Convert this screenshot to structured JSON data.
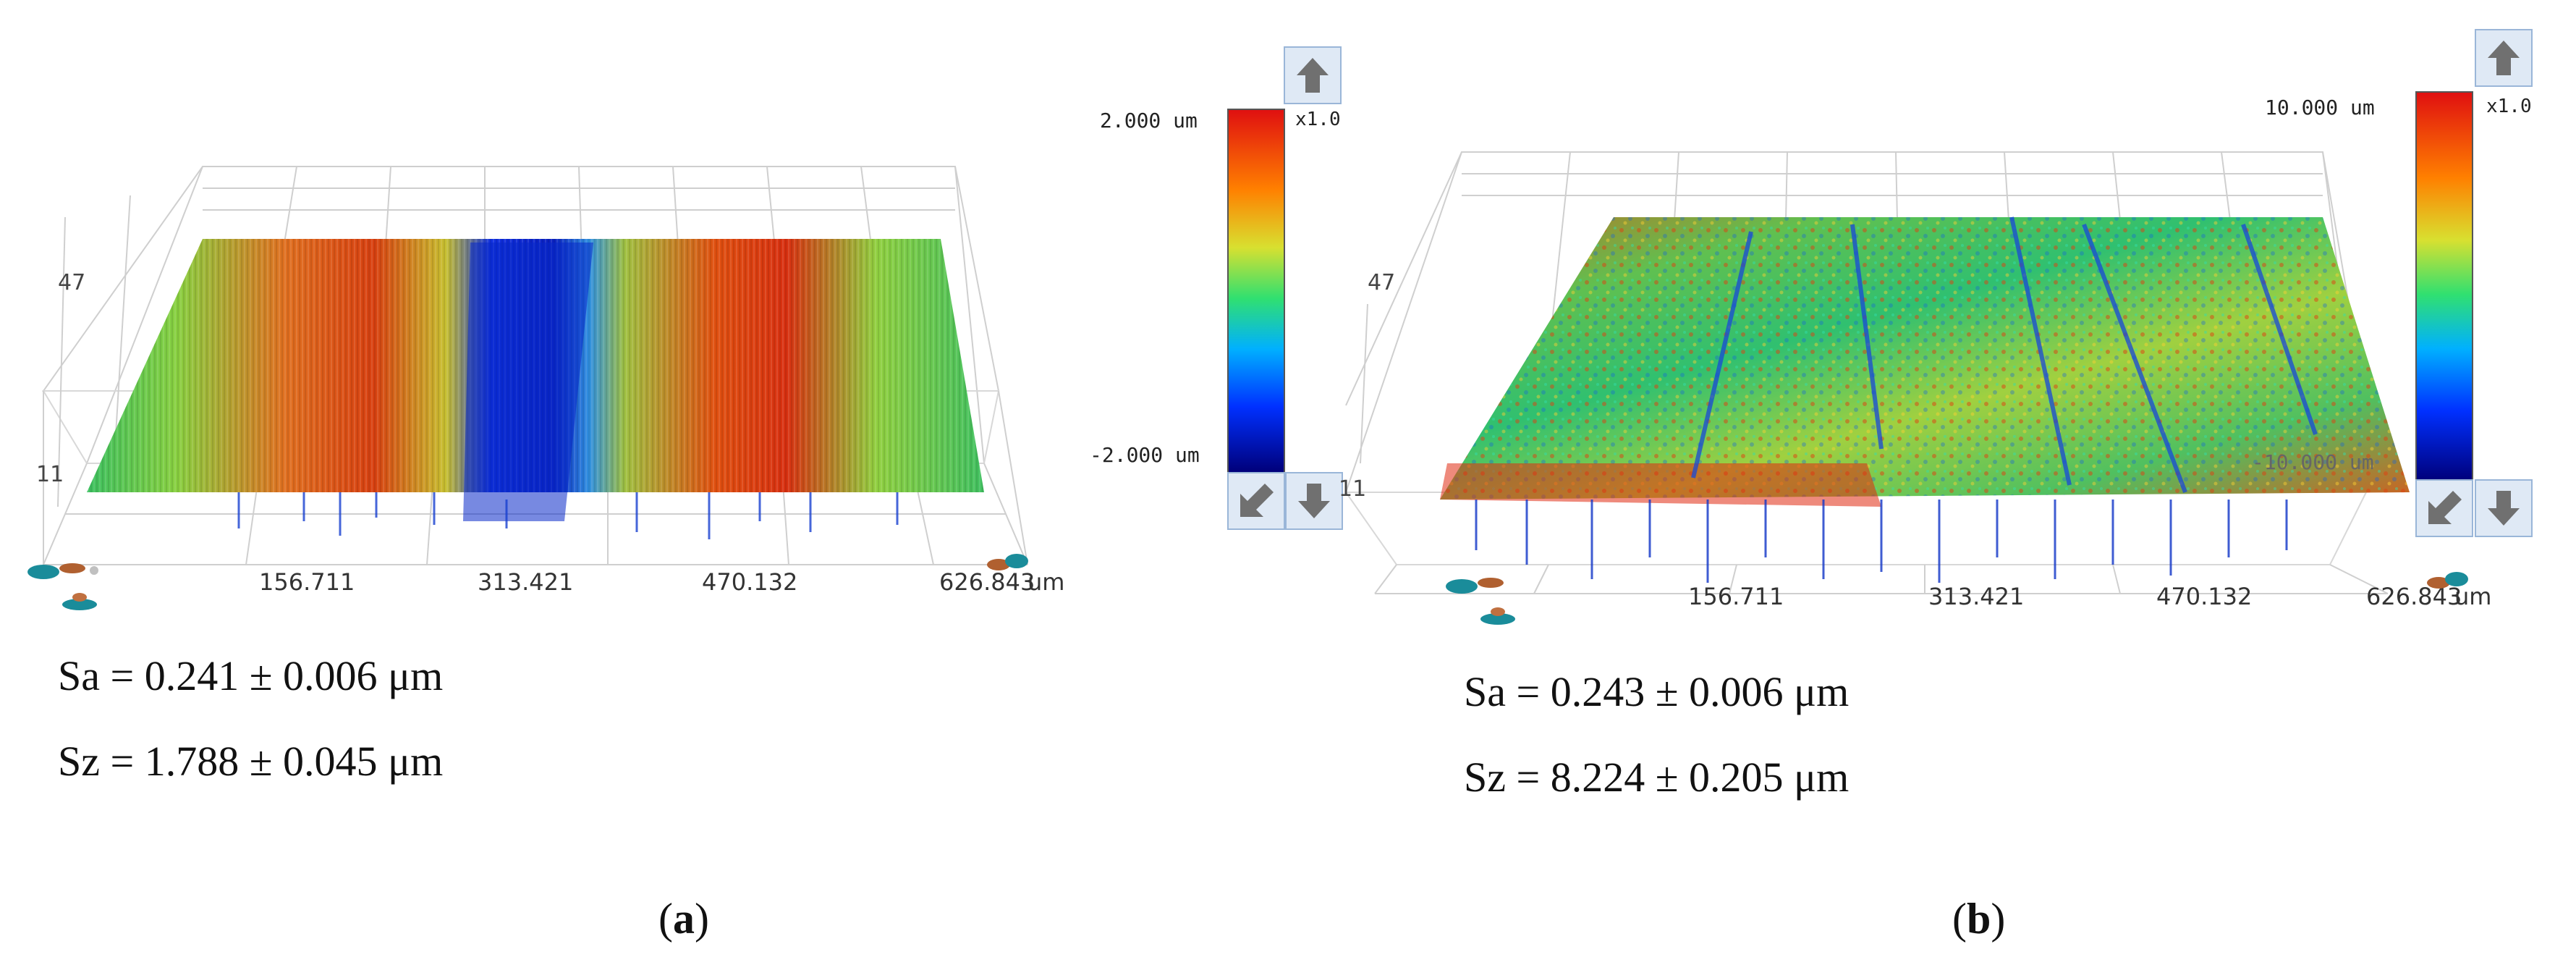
{
  "panels": [
    {
      "id": "a",
      "axis_x_ticks": [
        "156.711",
        "313.421",
        "470.132",
        "626.843"
      ],
      "axis_x_unit": "um",
      "axis_y_ticks": [
        "47",
        "11"
      ],
      "colorbar": {
        "max": "2.000 um",
        "min": "-2.000 um",
        "scale": "x1.0"
      },
      "metrics": {
        "sa": "Sa = 0.241 ± 0.006 μm",
        "sz": "Sz = 1.788 ± 0.045 μm"
      },
      "caption_letter": "a"
    },
    {
      "id": "b",
      "axis_x_ticks": [
        "156.711",
        "313.421",
        "470.132",
        "626.843"
      ],
      "axis_x_unit": "um",
      "axis_y_ticks": [
        "47",
        "11"
      ],
      "colorbar": {
        "max": "10.000 um",
        "min": "-10.000 um",
        "scale": "x1.0"
      },
      "metrics": {
        "sa": "Sa = 0.243 ± 0.006 μm",
        "sz": "Sz = 8.224 ± 0.205 μm"
      },
      "caption_letter": "b"
    }
  ],
  "colors": {
    "colormap": [
      "#00007a",
      "#0030ff",
      "#00b0ff",
      "#30e070",
      "#d8e030",
      "#ff8000",
      "#e01010"
    ],
    "button_bg": "#dfe9f5",
    "button_border": "#9ab6d8"
  },
  "icons": [
    "arrow-up-icon",
    "arrow-down-icon",
    "rotate-diagonal-icon",
    "axis-orientation-icon"
  ]
}
